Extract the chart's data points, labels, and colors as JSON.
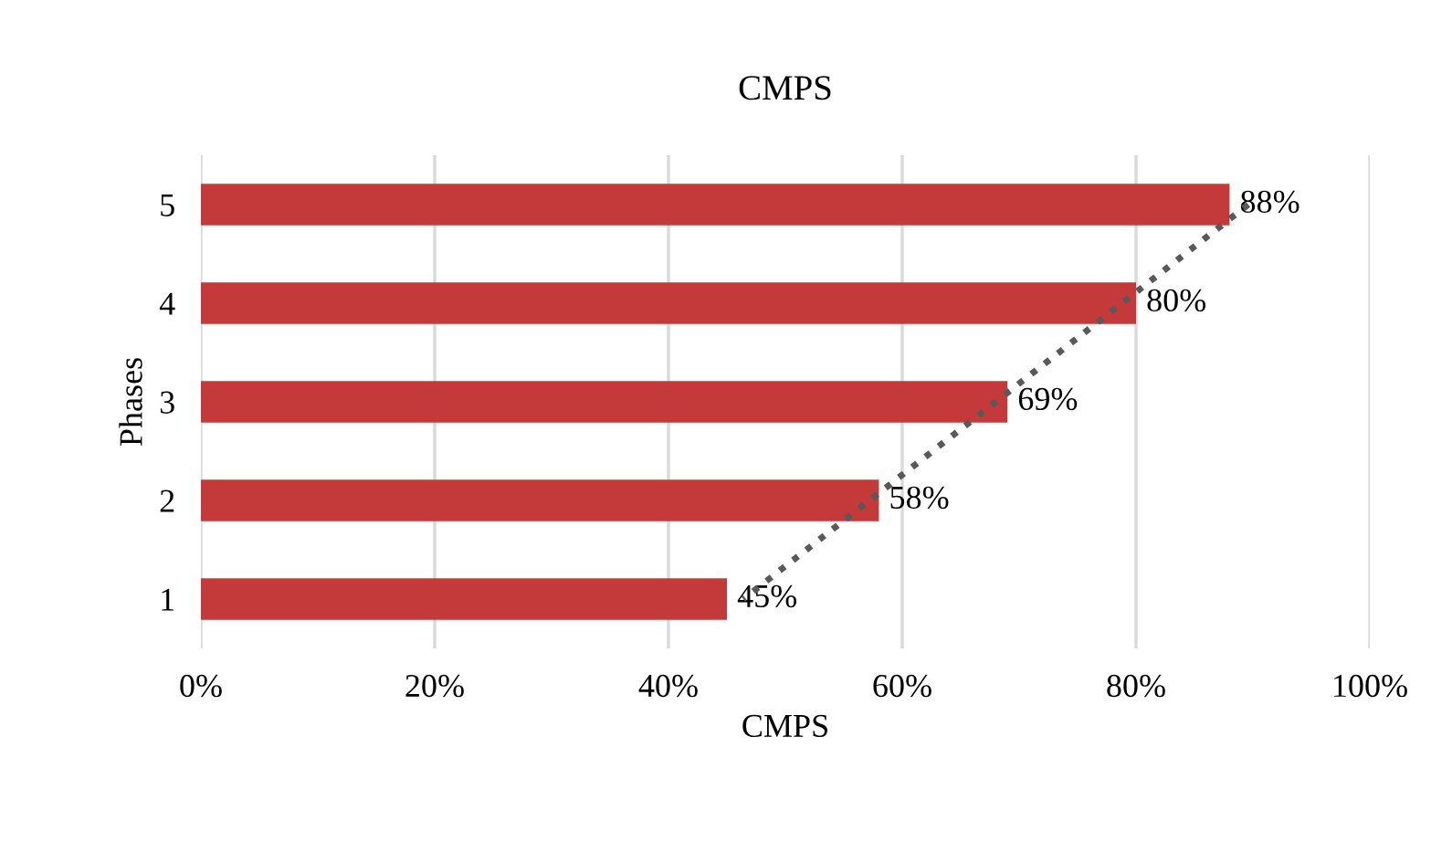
{
  "chart_data": {
    "type": "bar",
    "orientation": "horizontal",
    "title": "CMPS",
    "xlabel": "CMPS",
    "ylabel": "Phases",
    "categories": [
      "5",
      "4",
      "3",
      "2",
      "1"
    ],
    "series": [
      {
        "color": "#c43a3a",
        "values": [
          88,
          80,
          69,
          58,
          45
        ],
        "value_labels": [
          "88%",
          "80%",
          "69%",
          "58%",
          "45%"
        ]
      },
      {
        "type": "line",
        "color": "#595959",
        "line_style": "dotted",
        "values": [
          89.6,
          78.8,
          68,
          57.2,
          46.4
        ]
      }
    ],
    "xlim": [
      0,
      100
    ],
    "xticks": [
      {
        "value": 0,
        "label": "0%"
      },
      {
        "value": 20,
        "label": "20%"
      },
      {
        "value": 40,
        "label": "40%"
      },
      {
        "value": 60,
        "label": "60%"
      },
      {
        "value": 80,
        "label": "80%"
      },
      {
        "value": 100,
        "label": "100%"
      }
    ],
    "grid": "x",
    "legend": false
  }
}
